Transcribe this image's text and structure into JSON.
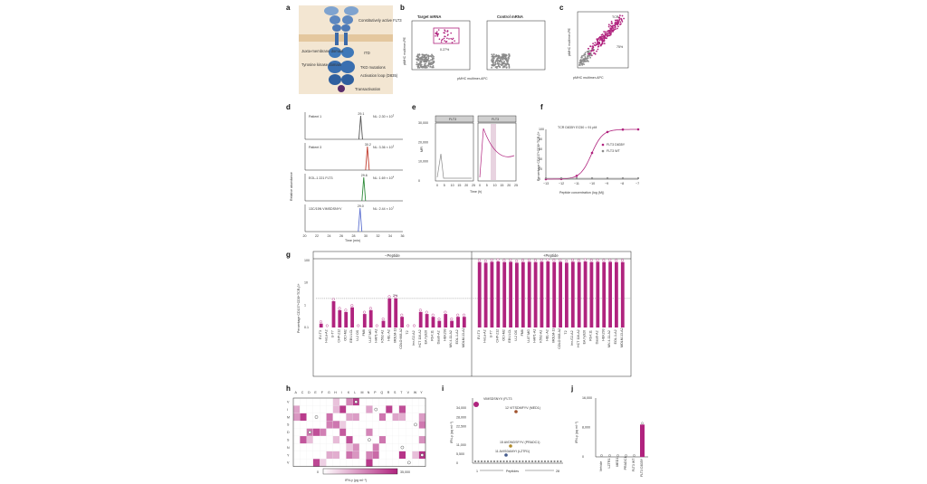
{
  "colors": {
    "magenta": "#b0237e",
    "grey": "#8a8a8a",
    "green": "#2e8b3a",
    "blue": "#5b6fd0",
    "red": "#c0392b",
    "peach": "#e9d3b8",
    "brown": "#a0522d",
    "olive": "#b08a2a"
  },
  "panels": {
    "a": {
      "label": "a",
      "annotations": [
        "Constitutively active FLT3",
        "Juxta-membrane domain",
        "ITD",
        "Tyrosine kinase domain",
        "TKD mutations",
        "Activation loop (D835)",
        "Transactivation"
      ]
    },
    "b": {
      "label": "b",
      "left_title": "Target mRNA",
      "right_title": "Control mRNA",
      "gate": "0.27%",
      "ylabel": "pMHC multimer-PE",
      "xlabel": "pMHC multimer-APC"
    },
    "c": {
      "label": "c",
      "gate_label": "TCR",
      "gate_sup": "FLT3 D835Y",
      "gate_pct": "75%",
      "ylabel": "pMHC multimer-PE",
      "xlabel": "pMHC multimer-APC"
    },
    "d": {
      "label": "d",
      "ylabel": "Relative abundance",
      "xlabel": "Time (min)",
      "xticks": [
        "20",
        "22",
        "24",
        "26",
        "28",
        "30",
        "32",
        "34",
        "36"
      ],
      "traces": [
        {
          "name": "Patient 1",
          "rt": "29.1",
          "nl": "NL: 2.30 × 10",
          "nl_exp": "3",
          "color": "#555555"
        },
        {
          "name": "Patient 3",
          "rt": "30.2",
          "nl": "NL: 3.36 × 10",
          "nl_exp": "3",
          "color": "#c0392b"
        },
        {
          "name": "EOL-1 221 FLT3",
          "rt": "29.6",
          "nl": "NL: 1.69 × 10",
          "nl_exp": "4",
          "color": "#2e8b3a"
        },
        {
          "name": "13C/15N VIMSDSNYV",
          "rt": "29.0",
          "nl": "NL: 2.44 × 10",
          "nl_exp": "7",
          "color": "#5b6fd0"
        }
      ]
    },
    "e": {
      "label": "e",
      "ylabel": "MFI",
      "xlabel": "Time (h)",
      "left_title": "FLT3",
      "right_title": "FLT3",
      "yticks": [
        "0",
        "10,000",
        "20,000",
        "30,000"
      ],
      "xticks": [
        "0",
        "5",
        "10",
        "15",
        "20",
        "25"
      ]
    },
    "f": {
      "label": "f",
      "ylabel": "Percentage CD137+CD8+TCR-β+",
      "xlabel": "Peptide concentration (log (M))",
      "ec50": "TCR D835Y EC50 = 91 pM",
      "legend": [
        "FLT3 D835Y",
        "FLT3 WT"
      ],
      "yticks": [
        "0",
        "20",
        "40",
        "60",
        "80",
        "100"
      ],
      "xticks": [
        "−13",
        "−12",
        "−11",
        "−10",
        "−9",
        "−8",
        "−7"
      ]
    },
    "g": {
      "label": "g",
      "ylabel": "Percentage CD137+CD8+TCR-β+",
      "minus": "−Peptide",
      "plus": "+Peptide",
      "threshold": "2%",
      "yticks": [
        "0.1",
        "1",
        "10",
        "100"
      ]
    },
    "h": {
      "label": "h",
      "cols": [
        "A",
        "C",
        "D",
        "E",
        "F",
        "G",
        "H",
        "I",
        "K",
        "L",
        "M",
        "N",
        "P",
        "Q",
        "R",
        "S",
        "T",
        "V",
        "W",
        "Y"
      ],
      "rows": [
        "V",
        "I",
        "M",
        "S",
        "D",
        "S",
        "N",
        "Y",
        "V"
      ],
      "cbar_label": "IFN-γ (pg ml⁻¹)",
      "cbar_min": "0",
      "cbar_max": "35,000"
    },
    "i": {
      "label": "i",
      "ylabel": "IFN-γ (pg ml⁻¹)",
      "xlabel": "Peptides",
      "x_start": "1",
      "x_end": "28",
      "yticks": [
        "0",
        "5,500",
        "11,000",
        "22,500",
        "28,000",
        "34,000"
      ],
      "annotations": [
        "VIMSDSNYV (FLT3",
        "12 VITSDMFYV (MED1)",
        "15 AVDNDSFYV (PRADC1)",
        "11 AVISDAMYI (LZTR1)"
      ]
    },
    "j": {
      "label": "j",
      "ylabel": "IFN-γ (pg ml⁻¹)",
      "yticks": [
        "0",
        "8,000",
        "16,000"
      ],
      "categories": [
        "Vehicle",
        "LZTR1",
        "MED1",
        "PRADC1",
        "FLT3 WT",
        "FLT3 D835Y"
      ]
    }
  },
  "chart_data": [
    {
      "panel": "g",
      "type": "bar",
      "categories": [
        "EV-T3",
        "HeLa-A2",
        "U-T7",
        "CHP-212",
        "OCI-M2",
        "EBV-LCL",
        "U-2 OS",
        "FM6",
        "U-87 MG",
        "HAP1-A2",
        "K562-A2",
        "HEL-A2",
        "MOLM-13",
        "COLO 668-A2",
        "T2",
        "Imr-G2-A2",
        "HCT 116-A2",
        "EA.hy926",
        "RS4;11",
        "Daudi-A2",
        "HEK293",
        "MV-4-11-A2",
        "EOL-1-A2",
        "MOLM-13-A2"
      ],
      "series": [
        {
          "name": "−Peptide",
          "values": [
            0.15,
            0.1,
            1.5,
            0.6,
            0.5,
            0.8,
            0.1,
            0.4,
            0.6,
            0.1,
            0.2,
            2.0,
            2.0,
            0.3,
            0.1,
            0.1,
            0.5,
            0.4,
            0.3,
            0.2,
            0.4,
            0.2,
            0.3,
            0.3
          ]
        },
        {
          "name": "+Peptide",
          "values": [
            85,
            80,
            88,
            90,
            85,
            88,
            80,
            85,
            88,
            85,
            88,
            90,
            85,
            88,
            80,
            88,
            85,
            90,
            85,
            88,
            85,
            88,
            85,
            85
          ]
        }
      ],
      "ylim": [
        0.1,
        100
      ],
      "yscale": "log"
    },
    {
      "panel": "j",
      "type": "bar",
      "categories": [
        "Vehicle",
        "LZTR1",
        "MED1",
        "PRADC1",
        "FLT3 WT",
        "FLT3 D835Y"
      ],
      "values": [
        0,
        0,
        0,
        0,
        0,
        8800
      ],
      "ylim": [
        0,
        16000
      ]
    }
  ]
}
